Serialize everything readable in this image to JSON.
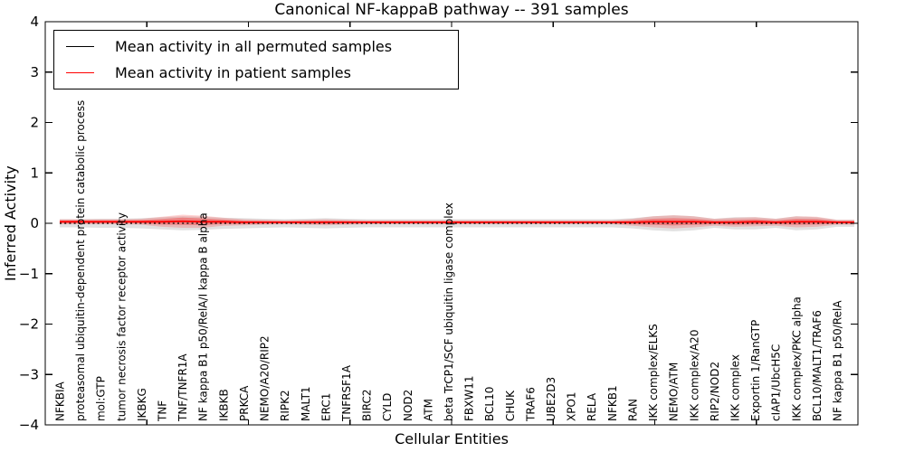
{
  "figure": {
    "title": "Canonical NF-kappaB pathway -- 391 samples",
    "xlabel": "Cellular Entities",
    "ylabel": "Inferred Activity"
  },
  "legend": {
    "items": [
      {
        "label": "Mean activity in all permuted samples",
        "color": "#000000"
      },
      {
        "label": "Mean activity in patient samples",
        "color": "#ff0000"
      }
    ]
  },
  "chart_data": {
    "type": "line",
    "title": "Canonical NF-kappaB pathway -- 391 samples",
    "xlabel": "Cellular Entities",
    "ylabel": "Inferred Activity",
    "ylim": [
      -4,
      4
    ],
    "yticks": [
      4,
      3,
      2,
      1,
      0,
      -1,
      -2,
      -3,
      -4
    ],
    "grid": false,
    "legend_position": "upper left",
    "categories": [
      "NFKBIA",
      "proteasomal ubiquitin-dependent protein catabolic process",
      "mol:GTP",
      "tumor necrosis factor receptor activity",
      "IKBKG",
      "TNF",
      "TNF/TNFR1A",
      "NF kappa B1 p50/RelA/I kappa B alpha",
      "IKBKB",
      "PRKCA",
      "NEMO/A20/RIP2",
      "RIPK2",
      "MALT1",
      "ERC1",
      "TNFRSF1A",
      "BIRC2",
      "CYLD",
      "NOD2",
      "ATM",
      "beta TrCP1/SCF ubiquitin ligase complex",
      "FBXW11",
      "BCL10",
      "CHUK",
      "TRAF6",
      "UBE2D3",
      "XPO1",
      "RELA",
      "NFKB1",
      "RAN",
      "IKK complex/ELKS",
      "NEMO/ATM",
      "IKK complex/A20",
      "RIP2/NOD2",
      "IKK complex",
      "Exportin 1/RanGTP",
      "cIAP1/UbcH5C",
      "IKK complex/PKC alpha",
      "BCL10/MALT1/TRAF6",
      "NF kappa B1 p50/RelA"
    ],
    "series": [
      {
        "name": "Mean activity in all permuted samples",
        "color": "#000000",
        "line_style": "dashed",
        "values": [
          0,
          0,
          0,
          0,
          0,
          0,
          0,
          0,
          0,
          0,
          0,
          0,
          0,
          0,
          0,
          0,
          0,
          0,
          0,
          0,
          0,
          0,
          0,
          0,
          0,
          0,
          0,
          0,
          0,
          0,
          0,
          0,
          0,
          0,
          0,
          0,
          0,
          0,
          0
        ]
      },
      {
        "name": "Mean activity in patient samples",
        "color": "#ff0000",
        "line_style": "solid",
        "values": [
          0.03,
          0.03,
          0.03,
          0.03,
          0.03,
          0.03,
          0.04,
          0.03,
          0.03,
          0.02,
          0.02,
          0.02,
          0.02,
          0.02,
          0.02,
          0.02,
          0.02,
          0.02,
          0.02,
          0.02,
          0.02,
          0.02,
          0.02,
          0.02,
          0.02,
          0.02,
          0.02,
          0.02,
          0.02,
          0.03,
          0.03,
          0.03,
          0.02,
          0.02,
          0.03,
          0.02,
          0.03,
          0.03,
          0.02
        ]
      }
    ],
    "bands": [
      {
        "name": "permuted samples activity spread",
        "color": "#888888",
        "opacity": 0.25,
        "center_series": 0,
        "half_widths": [
          0.08,
          0.08,
          0.09,
          0.09,
          0.1,
          0.12,
          0.14,
          0.13,
          0.11,
          0.1,
          0.09,
          0.08,
          0.09,
          0.1,
          0.09,
          0.08,
          0.08,
          0.08,
          0.08,
          0.08,
          0.08,
          0.08,
          0.08,
          0.08,
          0.08,
          0.08,
          0.08,
          0.08,
          0.1,
          0.14,
          0.16,
          0.14,
          0.09,
          0.12,
          0.12,
          0.09,
          0.14,
          0.12,
          0.07
        ]
      },
      {
        "name": "patient samples activity spread",
        "color": "#ff0000",
        "opacity": 0.18,
        "center_series": 1,
        "half_widths": [
          0.05,
          0.05,
          0.05,
          0.05,
          0.06,
          0.1,
          0.13,
          0.12,
          0.08,
          0.06,
          0.05,
          0.04,
          0.05,
          0.06,
          0.05,
          0.04,
          0.04,
          0.04,
          0.04,
          0.04,
          0.04,
          0.04,
          0.04,
          0.04,
          0.04,
          0.04,
          0.04,
          0.04,
          0.07,
          0.11,
          0.13,
          0.11,
          0.07,
          0.09,
          0.09,
          0.07,
          0.11,
          0.1,
          0.05
        ]
      }
    ]
  }
}
